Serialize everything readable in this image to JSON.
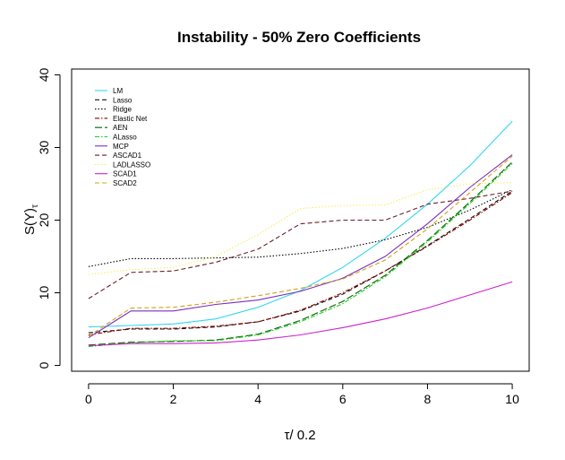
{
  "chart_data": {
    "type": "line",
    "title": "Instability - 50% Zero Coefficients",
    "xlabel": "τ/ 0.2",
    "ylabel": "S(Y)",
    "ylabel_subscript": "τ",
    "xlim": [
      -0.4,
      10.4
    ],
    "ylim": [
      -0.8,
      40.8
    ],
    "xticks": [
      0,
      2,
      4,
      6,
      8,
      10
    ],
    "yticks": [
      0,
      10,
      20,
      30,
      40
    ],
    "legend_position": "top-left",
    "x": [
      0,
      1,
      2,
      3,
      4,
      5,
      6,
      7,
      8,
      9,
      10
    ],
    "series": [
      {
        "name": "LM",
        "color": "#33d6f0",
        "dash": "solid",
        "values": [
          5.3,
          5.5,
          5.7,
          6.4,
          8.0,
          10.3,
          13.5,
          17.5,
          22.2,
          27.5,
          33.6
        ]
      },
      {
        "name": "Lasso",
        "color": "#111111",
        "dash": "dashed",
        "values": [
          4.5,
          5.0,
          5.0,
          5.3,
          6.0,
          7.5,
          9.8,
          13.0,
          16.5,
          20.2,
          24.0
        ]
      },
      {
        "name": "Ridge",
        "color": "#000000",
        "dash": "dotted",
        "values": [
          13.6,
          14.7,
          14.7,
          14.8,
          14.9,
          15.4,
          16.1,
          17.3,
          19.0,
          21.4,
          24.2
        ]
      },
      {
        "name": "Elastic Net",
        "color": "#8b0000",
        "dash": "dashdot",
        "values": [
          4.2,
          5.1,
          5.1,
          5.4,
          6.0,
          7.6,
          10.0,
          13.0,
          16.4,
          20.0,
          23.8
        ]
      },
      {
        "name": "AEN",
        "color": "#006400",
        "dash": "longdash",
        "values": [
          2.8,
          3.2,
          3.3,
          3.5,
          4.3,
          6.2,
          8.8,
          12.4,
          17.2,
          22.5,
          28.0
        ]
      },
      {
        "name": "ALasso",
        "color": "#22cc22",
        "dash": "dashdot",
        "values": [
          2.6,
          3.1,
          3.4,
          3.4,
          4.2,
          6.0,
          8.5,
          12.2,
          17.0,
          22.3,
          27.8
        ]
      },
      {
        "name": "MCP",
        "color": "#7b2fbe",
        "dash": "solid",
        "values": [
          3.8,
          7.5,
          7.5,
          8.4,
          9.0,
          10.2,
          12.0,
          15.0,
          19.5,
          24.5,
          29.0
        ]
      },
      {
        "name": "ASCAD1",
        "color": "#6b1f2a",
        "dash": "dashed",
        "values": [
          9.2,
          12.8,
          13.0,
          14.2,
          16.0,
          19.5,
          20.0,
          20.0,
          22.2,
          23.0,
          24.0
        ]
      },
      {
        "name": "LADLASSO",
        "color": "#f2f060",
        "dash": "dotted",
        "values": [
          12.5,
          13.2,
          13.5,
          15.0,
          18.0,
          21.6,
          22.0,
          22.1,
          24.2,
          25.0,
          25.2
        ]
      },
      {
        "name": "SCAD1",
        "color": "#cc22cc",
        "dash": "solid",
        "values": [
          2.7,
          3.0,
          3.0,
          3.1,
          3.5,
          4.2,
          5.2,
          6.4,
          7.9,
          9.7,
          11.5
        ]
      },
      {
        "name": "SCAD2",
        "color": "#d4a017",
        "dash": "dashed",
        "values": [
          4.0,
          7.9,
          8.0,
          8.7,
          9.6,
          10.6,
          11.9,
          14.5,
          18.8,
          23.8,
          28.8
        ]
      }
    ]
  }
}
